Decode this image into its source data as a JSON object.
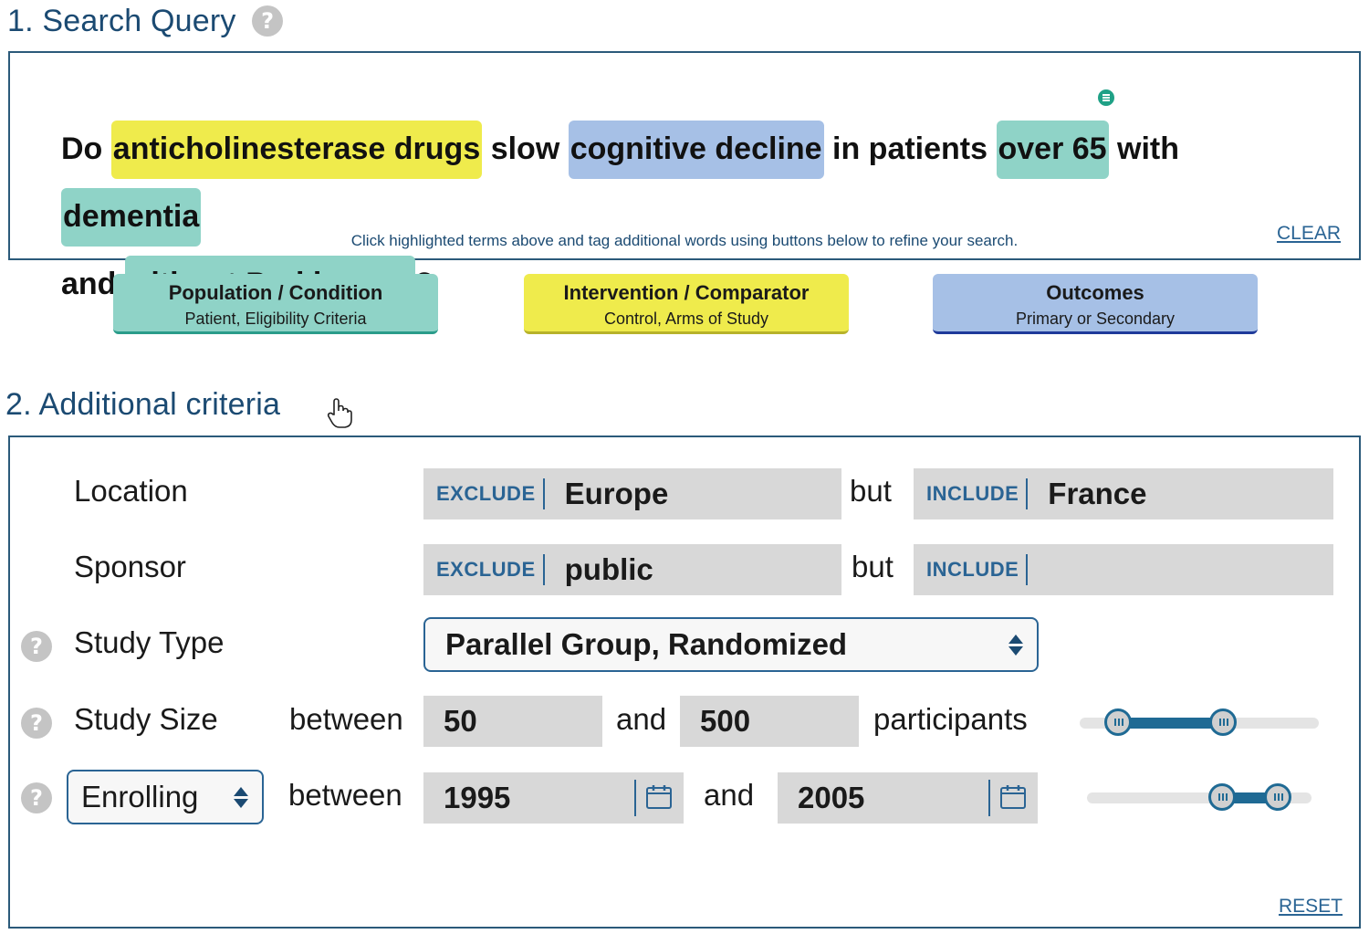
{
  "search": {
    "title": "1. Search Query",
    "help_icon": "?",
    "query": {
      "w1": "Do ",
      "t1": "anticholinesterase drugs",
      "w2": " slow ",
      "t2": "cognitive decline",
      "w3": " in patients ",
      "t3": "over 65",
      "w4": " with ",
      "t4": "dementia",
      "w5": " and ",
      "t5": "without Parkinsons",
      "w6": "?"
    },
    "hint": "Click highlighted terms above and tag additional words using buttons below to refine your search.",
    "clear_label": "CLEAR"
  },
  "tags": {
    "population": {
      "title": "Population / Condition",
      "subtitle": "Patient, Eligibility Criteria",
      "color": "#8fd3c7"
    },
    "intervention": {
      "title": "Intervention / Comparator",
      "subtitle": "Control, Arms of Study",
      "color": "#efeb4c"
    },
    "outcomes": {
      "title": "Outcomes",
      "subtitle": "Primary or Secondary",
      "color": "#a6c0e6"
    }
  },
  "criteria": {
    "title": "2. Additional criteria",
    "help_icon": "?",
    "location": {
      "label": "Location",
      "exclude_prefix": "EXCLUDE",
      "exclude_value": "Europe",
      "but": "but",
      "include_prefix": "INCLUDE",
      "include_value": "France"
    },
    "sponsor": {
      "label": "Sponsor",
      "exclude_prefix": "EXCLUDE",
      "exclude_value": "public",
      "but": "but",
      "include_prefix": "INCLUDE",
      "include_value": ""
    },
    "study_type": {
      "label": "Study Type",
      "selected": "Parallel Group, Randomized"
    },
    "study_size": {
      "label": "Study Size",
      "between": "between",
      "min": "50",
      "and": "and",
      "max": "500",
      "unit": "participants",
      "slider_low": 0.16,
      "slider_high": 0.6
    },
    "enrolling": {
      "selected": "Enrolling",
      "between": "between",
      "from": "1995",
      "and": "and",
      "to": "2005",
      "slider_low": 0.6,
      "slider_high": 0.85
    },
    "reset_label": "RESET"
  }
}
